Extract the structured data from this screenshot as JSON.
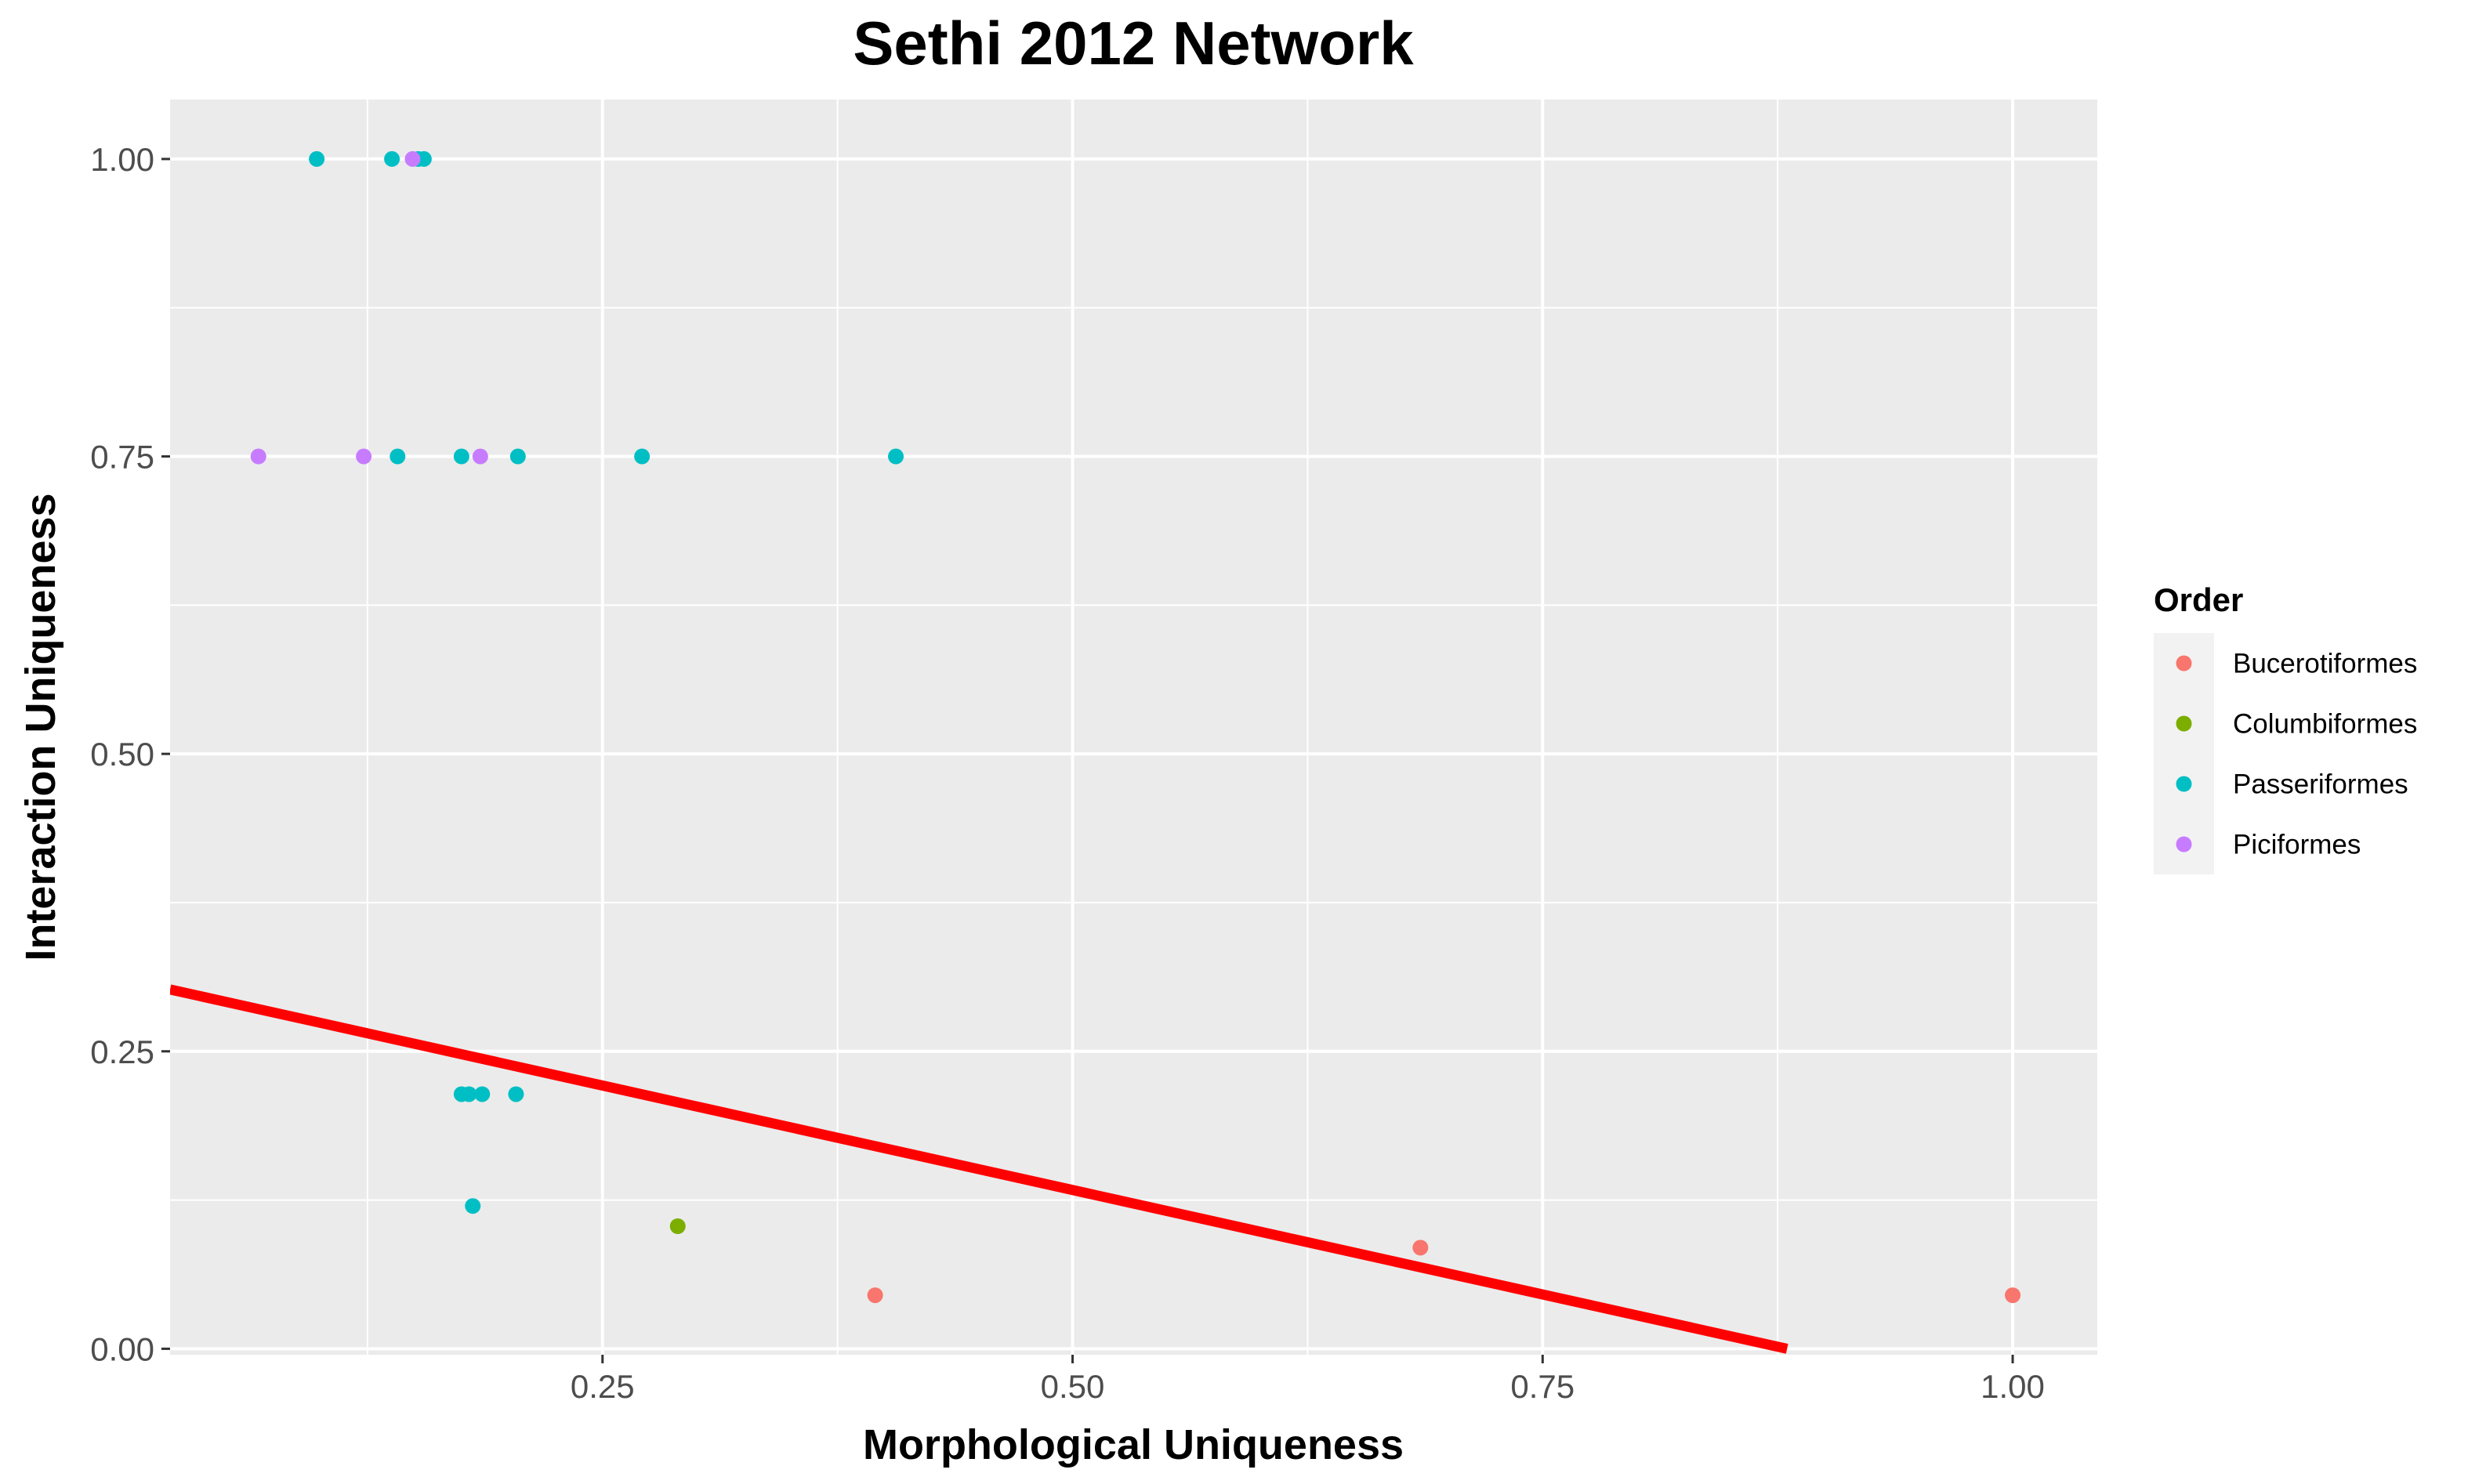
{
  "chart_data": {
    "type": "scatter",
    "title": "Sethi 2012 Network",
    "xlabel": "Morphological Uniqueness",
    "ylabel": "Interaction Uniqueness",
    "xlim": [
      0.02,
      1.045
    ],
    "ylim": [
      -0.005,
      1.05
    ],
    "x_ticks": [
      0.25,
      0.5,
      0.75,
      1.0
    ],
    "x_tick_labels": [
      "0.25",
      "0.50",
      "0.75",
      "1.00"
    ],
    "y_ticks": [
      0.0,
      0.25,
      0.5,
      0.75,
      1.0
    ],
    "y_tick_labels": [
      "0.00",
      "0.25",
      "0.50",
      "0.75",
      "1.00"
    ],
    "grid": true,
    "legend": {
      "title": "Order",
      "position": "right"
    },
    "background_color": "#ebebeb",
    "series": [
      {
        "name": "Bucerotiformes",
        "color": "#f8766d",
        "points": [
          {
            "x": 0.395,
            "y": 0.045
          },
          {
            "x": 0.685,
            "y": 0.085
          },
          {
            "x": 1.0,
            "y": 0.045
          }
        ]
      },
      {
        "name": "Columbiformes",
        "color": "#7cae00",
        "points": [
          {
            "x": 0.29,
            "y": 0.103
          }
        ]
      },
      {
        "name": "Passeriformes",
        "color": "#00bfc4",
        "points": [
          {
            "x": 0.098,
            "y": 1.0
          },
          {
            "x": 0.138,
            "y": 1.0
          },
          {
            "x": 0.152,
            "y": 1.0
          },
          {
            "x": 0.155,
            "y": 1.0
          },
          {
            "x": 0.141,
            "y": 0.75
          },
          {
            "x": 0.175,
            "y": 0.75
          },
          {
            "x": 0.205,
            "y": 0.75
          },
          {
            "x": 0.271,
            "y": 0.75
          },
          {
            "x": 0.406,
            "y": 0.75
          },
          {
            "x": 0.175,
            "y": 0.214
          },
          {
            "x": 0.179,
            "y": 0.214
          },
          {
            "x": 0.186,
            "y": 0.214
          },
          {
            "x": 0.204,
            "y": 0.214
          },
          {
            "x": 0.181,
            "y": 0.12
          }
        ]
      },
      {
        "name": "Piciformes",
        "color": "#c77cff",
        "points": [
          {
            "x": 0.067,
            "y": 0.75
          },
          {
            "x": 0.123,
            "y": 0.75
          },
          {
            "x": 0.185,
            "y": 0.75
          },
          {
            "x": 0.149,
            "y": 1.0
          }
        ]
      }
    ],
    "trend_line": {
      "type": "linear",
      "color": "#ff0000",
      "points": [
        {
          "x": 0.02,
          "y": 0.302
        },
        {
          "x": 0.88,
          "y": 0.0
        }
      ]
    }
  }
}
